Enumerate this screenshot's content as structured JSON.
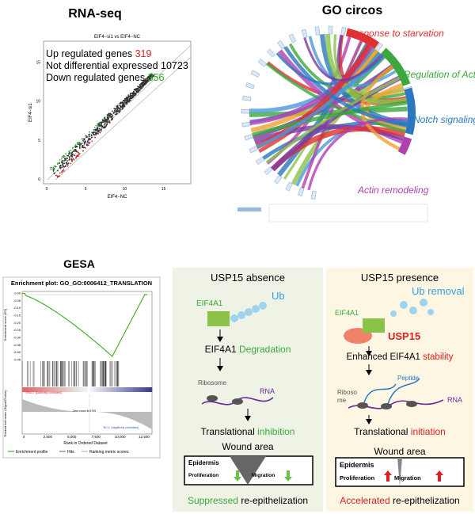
{
  "rnaseq": {
    "title": "RNA-seq",
    "plot_title": "EIF4−si1 vs EIF4−NC",
    "x_label": "EIF4−NC",
    "y_label": "EIF4−si1",
    "ticks": [
      "0",
      "5",
      "10",
      "15"
    ],
    "legend": [
      {
        "label": "Up regulated genes",
        "count": "319"
      },
      {
        "label": "Not differential expressed",
        "count": "10723"
      },
      {
        "label": "Down regulated genes",
        "count": "356"
      }
    ]
  },
  "go": {
    "title": "GO circos",
    "terms": [
      "Response to starvation",
      "Regulation of Actin",
      "Notch signaling",
      "Actin remodeling"
    ]
  },
  "gesa": {
    "title": "GESA",
    "plot_title": "Enrichment plot: GO_GO:0006412_TRANSLATION",
    "es_label": "Enrichment score (ES)",
    "es_ticks": [
      "0.00",
      "-0.05",
      "-0.10",
      "-0.15",
      "-0.20",
      "-0.25",
      "-0.30",
      "-0.35",
      "-0.40",
      "-0.45"
    ],
    "metric_label": "Ranked list metric (Signal2Noise)",
    "pos_label": "'SHA-1' (positively correlated)",
    "neg_label": "'NC-1' (negatively correlated)",
    "zero_cross": "Zero cross at 6705",
    "x_ticks": [
      "0",
      "2,500",
      "5,000",
      "7,500",
      "10,000",
      "12,500"
    ],
    "x_label": "Rank in Ordered Dataset",
    "legend": [
      "Enrichment profile",
      "Hits",
      "Ranking metric scores"
    ]
  },
  "absence": {
    "title": "USP15 absence",
    "protein": "EIF4A1",
    "ub": "Ub",
    "step1": [
      "EIF4A1",
      "Degradation"
    ],
    "ribosome": "Ribosome",
    "rna": "RNA",
    "step2": [
      "Translational",
      "inhibition"
    ],
    "wound": "Wound area",
    "epidermis": "Epidermis",
    "proliferation": "Proliferation",
    "migration": "Migration",
    "result": [
      "Suppressed",
      "re-epithelization"
    ]
  },
  "presence": {
    "title": "USP15 presence",
    "ub": "Ub removal",
    "protein": "EIF4A1",
    "usp15": "USP15",
    "step1": [
      "Enhanced EIF4A1",
      "stability"
    ],
    "peptide": "Peptide",
    "ribosome": [
      "Riboso",
      "me"
    ],
    "rna": "RNA",
    "step2": [
      "Translational",
      "initiation"
    ],
    "wound": "Wound area",
    "epidermis": "Epidermis",
    "proliferation": "Proliferation",
    "migration": "Migration",
    "result": [
      "Accelerated",
      "re-epithelization"
    ]
  }
}
